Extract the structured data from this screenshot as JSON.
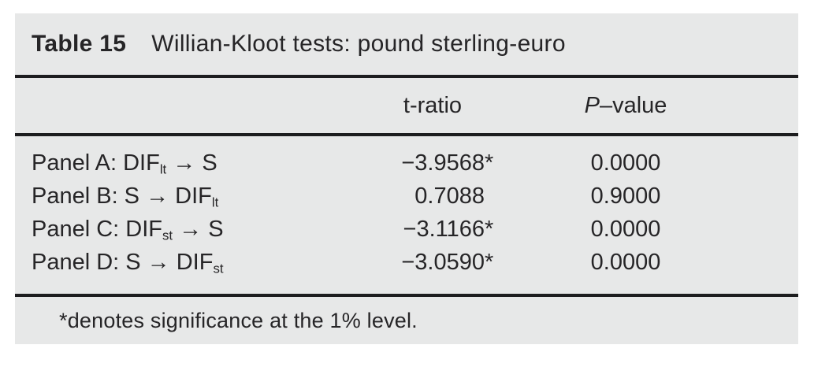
{
  "figure": {
    "title_label": "Table 15",
    "title_text": "Willian-Kloot tests: pound sterling-euro",
    "header": {
      "t": "t-ratio",
      "p_italic": "P",
      "p_rest": "–value"
    },
    "rows": [
      {
        "prefix": "Panel A: DIF",
        "sub": "lt",
        "suffix": " → S",
        "t": "−3.9568",
        "t_star": "*",
        "p": "0.0000"
      },
      {
        "prefix": "Panel B: S → DIF",
        "sub": "lt",
        "suffix": "",
        "t": "0.7088",
        "t_star": "",
        "p": "0.9000"
      },
      {
        "prefix": "Panel C: DIF",
        "sub": "st",
        "suffix": " → S",
        "t": "−3.1166",
        "t_star": "*",
        "p": "0.0000"
      },
      {
        "prefix": "Panel D: S → DIF",
        "sub": "st",
        "suffix": "",
        "t": "−3.0590",
        "t_star": "*",
        "p": "0.0000"
      }
    ],
    "footnote": "*denotes significance at the 1% level."
  },
  "colors": {
    "panel_bg": "#e7e8e8",
    "text": "#262527",
    "rule": "#1d1d1f"
  }
}
